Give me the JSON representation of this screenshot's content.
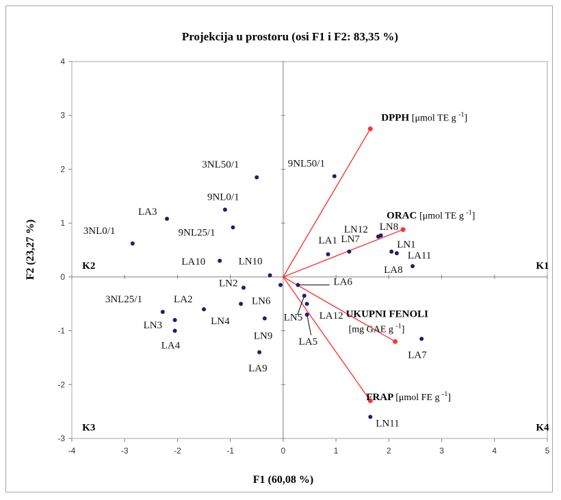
{
  "chart_data": {
    "type": "scatter",
    "title": "Projekcija u prostoru  (osi F1 i F2: 83,35 %)",
    "xlabel": "F1 (60,08 %)",
    "ylabel": "F2 (23,27 %)",
    "xlim": [
      -4,
      5
    ],
    "ylim": [
      -3,
      4
    ],
    "xticks": [
      "-4",
      "-3",
      "-2",
      "-1",
      "0",
      "1",
      "2",
      "3",
      "4",
      "5"
    ],
    "yticks": [
      "-3",
      "-2",
      "-1",
      "0",
      "1",
      "2",
      "3",
      "4"
    ],
    "point_color": "#1f1f6b",
    "vector_color": "#ff3333",
    "grid": false,
    "quadrants": [
      {
        "label": "K1",
        "x": 4.8,
        "y": 0.3
      },
      {
        "label": "K2",
        "x": -3.7,
        "y": 0.3
      },
      {
        "label": "K3",
        "x": -3.7,
        "y": -2.7
      },
      {
        "label": "K4",
        "x": 4.8,
        "y": -2.7
      }
    ],
    "points": [
      {
        "label": "3NL50/1",
        "x": -0.5,
        "y": 1.85
      },
      {
        "label": "9NL50/1",
        "x": 0.97,
        "y": 1.87
      },
      {
        "label": "9NL0/1",
        "x": -1.1,
        "y": 1.25
      },
      {
        "label": "LA3",
        "x": -2.2,
        "y": 1.08
      },
      {
        "label": "9NL25/1",
        "x": -0.95,
        "y": 0.92
      },
      {
        "label": "3NL0/1",
        "x": -2.85,
        "y": 0.62
      },
      {
        "label": "LA10",
        "x": -1.2,
        "y": 0.3
      },
      {
        "label": "LN10",
        "x": -0.25,
        "y": 0.03
      },
      {
        "label": "LN12",
        "x": 1.8,
        "y": 0.75
      },
      {
        "label": "LN8",
        "x": 1.85,
        "y": 0.77
      },
      {
        "label": "LA1",
        "x": 0.85,
        "y": 0.42
      },
      {
        "label": "LN7",
        "x": 1.25,
        "y": 0.47
      },
      {
        "label": "LN1",
        "x": 2.05,
        "y": 0.47
      },
      {
        "label": "LA11",
        "x": 2.15,
        "y": 0.44
      },
      {
        "label": "LA8",
        "x": 2.45,
        "y": 0.2
      },
      {
        "label": "LN2",
        "x": -0.75,
        "y": -0.2
      },
      {
        "label": "LN6",
        "x": -0.05,
        "y": -0.15
      },
      {
        "label": "LA6",
        "x": 0.28,
        "y": -0.15
      },
      {
        "label": "LA2",
        "x": -1.5,
        "y": -0.6
      },
      {
        "label": "LN4",
        "x": -0.8,
        "y": -0.5
      },
      {
        "label": "LN5",
        "x": 0.4,
        "y": -0.35
      },
      {
        "label": "LA12",
        "x": 0.45,
        "y": -0.5
      },
      {
        "label": "3NL25/1",
        "x": -2.28,
        "y": -0.65
      },
      {
        "label": "LN3",
        "x": -2.05,
        "y": -0.8
      },
      {
        "label": "LA4",
        "x": -2.05,
        "y": -1.0
      },
      {
        "label": "LN9",
        "x": -0.35,
        "y": -0.77
      },
      {
        "label": "LA5",
        "x": 0.45,
        "y": -0.7
      },
      {
        "label": "LA7",
        "x": 2.62,
        "y": -1.15
      },
      {
        "label": "LA9",
        "x": -0.45,
        "y": -1.4
      },
      {
        "label": "LN11",
        "x": 1.65,
        "y": -2.6
      }
    ],
    "vectors": [
      {
        "bold": "DPPH",
        "unit": "[μmol TE g",
        "sup": "-1",
        "tail": "]",
        "x": 1.65,
        "y": 2.75
      },
      {
        "bold": "ORAC",
        "unit": "[μmol TE g",
        "sup": "-1",
        "tail": "]",
        "x": 2.27,
        "y": 0.88
      },
      {
        "bold": "UKUPNI FENOLI",
        "unit": "[mg GAE g",
        "sup": "-1",
        "tail": "]",
        "x": 2.12,
        "y": -1.2
      },
      {
        "bold": "FRAP",
        "unit": "[μmol FE g",
        "sup": "-1",
        "tail": "]",
        "x": 1.65,
        "y": -2.3
      }
    ]
  }
}
